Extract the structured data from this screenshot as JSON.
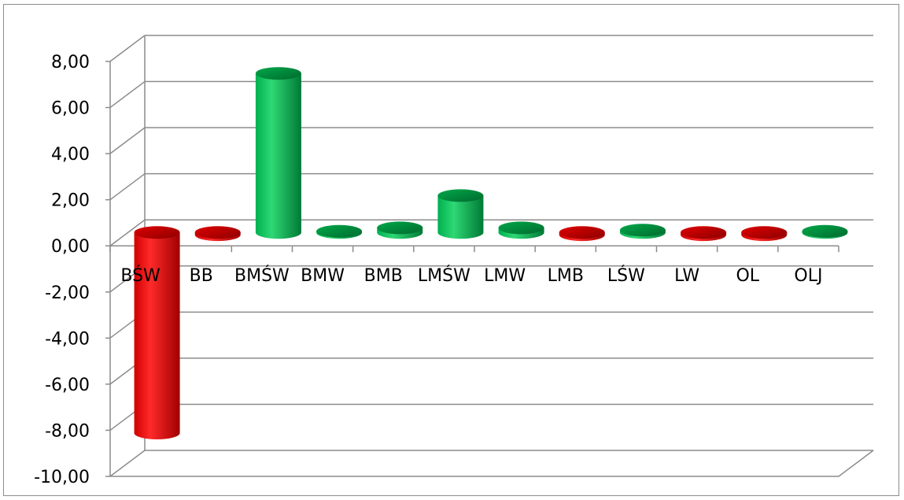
{
  "chart_data": {
    "type": "bar",
    "title": "",
    "xlabel": "",
    "ylabel": "",
    "categories": [
      "BŚW",
      "BB",
      "BMŚW",
      "BMW",
      "BMB",
      "LMŚW",
      "LMW",
      "LMB",
      "LŚW",
      "LW",
      "OL",
      "OLJ"
    ],
    "values": [
      -8.7,
      -0.1,
      6.9,
      0.05,
      0.2,
      1.6,
      0.2,
      -0.1,
      0.1,
      -0.1,
      -0.1,
      0.05
    ],
    "ylim": [
      -10,
      8
    ],
    "yticks": [
      "8,00",
      "6,00",
      "4,00",
      "2,00",
      "0,00",
      "-2,00",
      "-4,00",
      "-6,00",
      "-8,00",
      "-10,00"
    ],
    "grid": true,
    "legend": "none",
    "colors": {
      "positive": "#00b050",
      "negative": "#e00000"
    }
  }
}
